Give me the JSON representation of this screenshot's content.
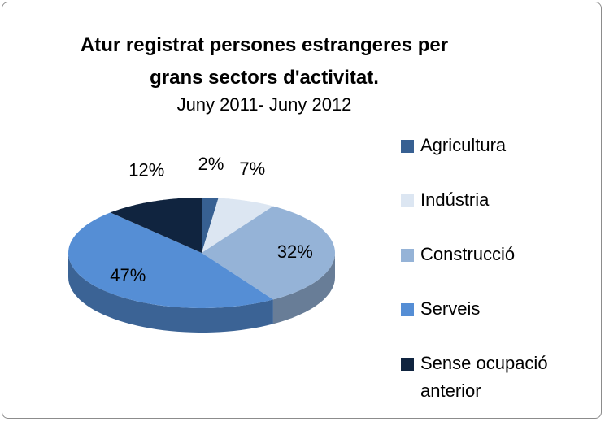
{
  "chart_data": {
    "type": "pie",
    "title": "Atur registrat persones estrangeres per grans sectors d'activitat.",
    "subtitle": "Juny 2011- Juny 2012",
    "categories": [
      "Agricultura",
      "Indústria",
      "Construcció",
      "Serveis",
      "Sense ocupació anterior"
    ],
    "values": [
      2,
      7,
      32,
      47,
      12
    ],
    "value_labels": [
      "2%",
      "7%",
      "32%",
      "47%",
      "12%"
    ],
    "colors": [
      "#376092",
      "#dce6f2",
      "#95b3d7",
      "#558ed5",
      "#10243f"
    ],
    "legend": "right"
  }
}
